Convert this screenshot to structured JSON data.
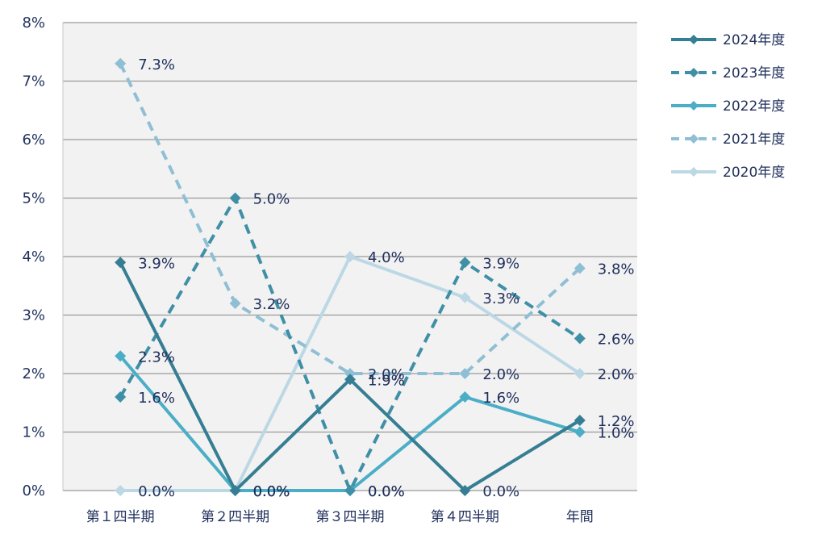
{
  "chart_data": {
    "type": "line",
    "categories": [
      "第１四半期",
      "第２四半期",
      "第３四半期",
      "第４四半期",
      "年間"
    ],
    "ylim": [
      0,
      8
    ],
    "yticks": [
      0,
      1,
      2,
      3,
      4,
      5,
      6,
      7,
      8
    ],
    "ytick_labels": [
      "0%",
      "1%",
      "2%",
      "3%",
      "4%",
      "5%",
      "6%",
      "7%",
      "8%"
    ],
    "grid": true,
    "legend_position": "top-right",
    "series": [
      {
        "name": "2024年度",
        "color": "#367e93",
        "dashed": false,
        "values": [
          3.9,
          0.0,
          1.9,
          0.0,
          1.2
        ],
        "labels": [
          "3.9%",
          "0.0%",
          "1.9%",
          "0.0%",
          "1.2%"
        ]
      },
      {
        "name": "2023年度",
        "color": "#3f8fa6",
        "dashed": true,
        "values": [
          1.6,
          5.0,
          0.0,
          3.9,
          2.6
        ],
        "labels": [
          "1.6%",
          "5.0%",
          "0.0%",
          "3.9%",
          "2.6%"
        ]
      },
      {
        "name": "2022年度",
        "color": "#4baec6",
        "dashed": false,
        "values": [
          2.3,
          0.0,
          0.0,
          1.6,
          1.0
        ],
        "labels": [
          "2.3%",
          "0.0%",
          "0.0%",
          "1.6%",
          "1.0%"
        ]
      },
      {
        "name": "2021年度",
        "color": "#8fbfd4",
        "dashed": true,
        "values": [
          7.3,
          3.2,
          2.0,
          2.0,
          3.8
        ],
        "labels": [
          "7.3%",
          "3.2%",
          "2.0%",
          "2.0%",
          "3.8%"
        ]
      },
      {
        "name": "2020年度",
        "color": "#bcd8e4",
        "dashed": false,
        "values": [
          0.0,
          0.0,
          4.0,
          3.3,
          2.0
        ],
        "labels": [
          "0.0%",
          "0.0%",
          "4.0%",
          "3.3%",
          "2.0%"
        ]
      }
    ]
  }
}
